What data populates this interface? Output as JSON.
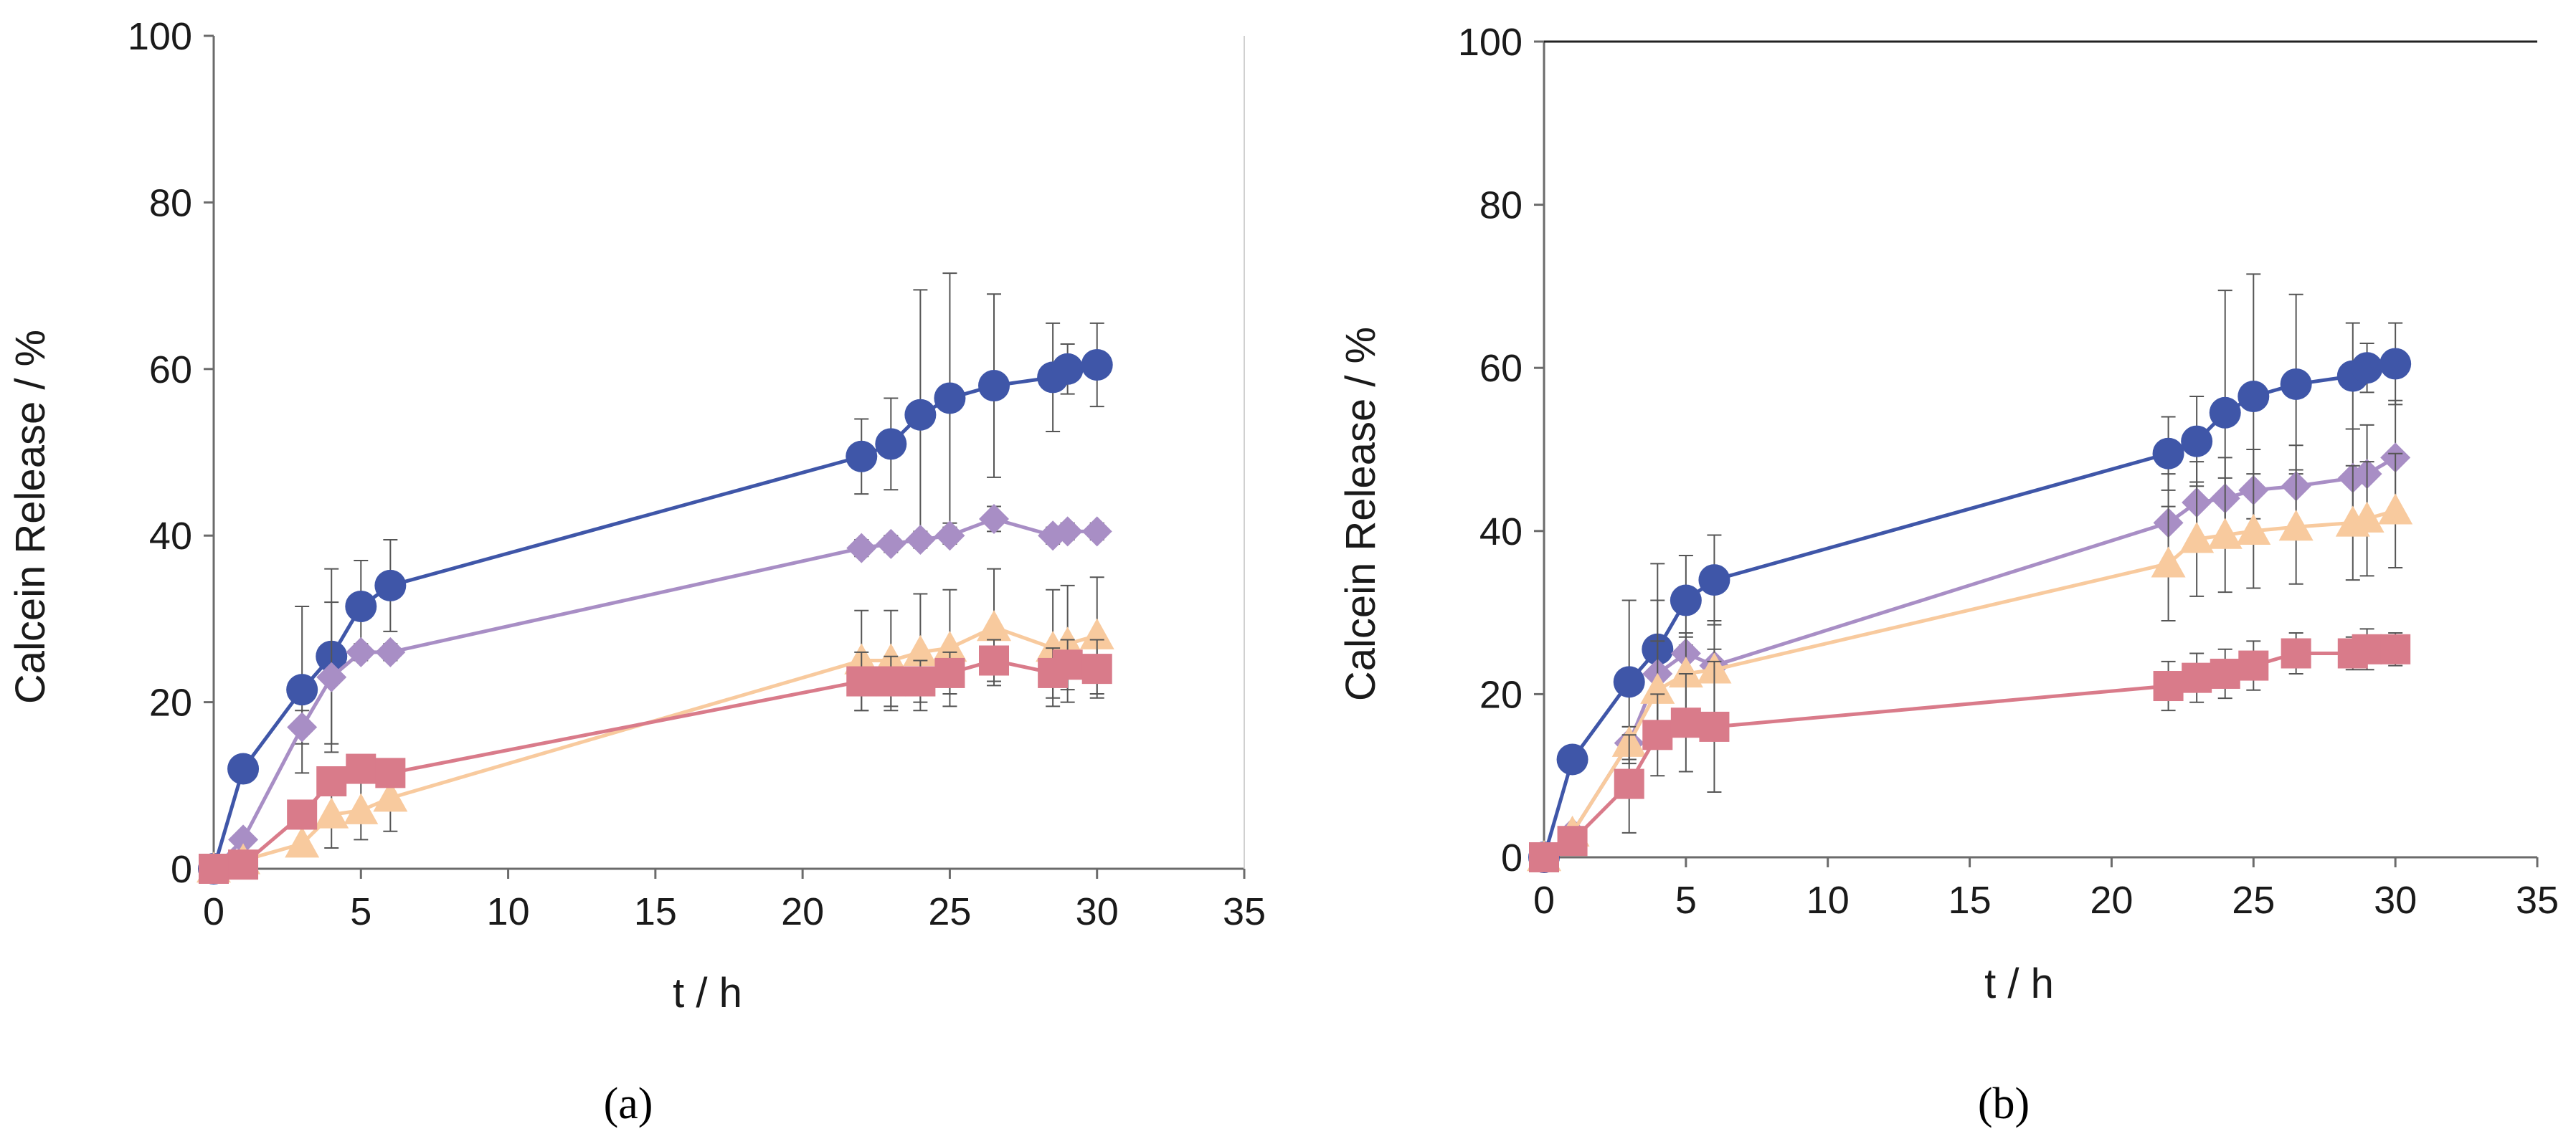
{
  "chart_data": [
    {
      "type": "scatter",
      "panel_label": "(a)",
      "xlabel": "t / h",
      "ylabel": "Calcein Release / %",
      "xlim": [
        0,
        35
      ],
      "ylim": [
        0,
        100
      ],
      "xticks": [
        "0",
        "5",
        "10",
        "15",
        "20",
        "25",
        "30",
        "35"
      ],
      "yticks": [
        "0",
        "20",
        "40",
        "60",
        "80",
        "100"
      ],
      "grid": false,
      "series": [
        {
          "marker": "circle",
          "color": "#3f56a8",
          "x": [
            0,
            1,
            3,
            4,
            5,
            6,
            22,
            23,
            24,
            25,
            26.5,
            28.5,
            29,
            30
          ],
          "y": [
            0,
            12,
            21.5,
            25.5,
            31.5,
            34,
            49.5,
            51,
            54.5,
            56.5,
            58,
            59,
            60,
            60.5
          ],
          "err": [
            0,
            0,
            10,
            10.5,
            5.5,
            5.5,
            4.5,
            5.5,
            15,
            15,
            11,
            6.5,
            3,
            5
          ]
        },
        {
          "marker": "diamond",
          "color": "#a88ec5",
          "x": [
            0,
            1,
            3,
            4,
            5,
            6,
            22,
            23,
            24,
            25,
            26.5,
            28.5,
            29,
            30
          ],
          "y": [
            0,
            3.5,
            17,
            23,
            26,
            26,
            38.5,
            39,
            39.5,
            40,
            42,
            40,
            40.5,
            40.5
          ],
          "err": [
            0,
            0,
            2,
            9,
            1,
            1,
            1,
            1,
            1,
            1,
            1.5,
            1,
            1,
            1
          ]
        },
        {
          "marker": "triangle",
          "color": "#f8ca9e",
          "x": [
            0,
            1,
            3,
            4,
            5,
            6,
            22,
            23,
            24,
            25,
            26.5,
            28.5,
            29,
            30
          ],
          "y": [
            0,
            1,
            3,
            6.5,
            7,
            8.5,
            25,
            25,
            26,
            26.5,
            29,
            26.5,
            27,
            28
          ],
          "err": [
            0,
            0,
            0,
            4,
            3.5,
            4,
            6,
            6,
            7,
            7,
            7,
            7,
            7,
            7
          ]
        },
        {
          "marker": "square",
          "color": "#d97b8a",
          "x": [
            0,
            1,
            3,
            4,
            5,
            6,
            22,
            23,
            24,
            25,
            26.5,
            28.5,
            29,
            30
          ],
          "y": [
            0,
            0.5,
            6.5,
            10.5,
            12,
            11.5,
            22.5,
            22.5,
            22.5,
            23.5,
            25,
            23.5,
            24.5,
            24
          ],
          "err": [
            0,
            0,
            0,
            0,
            0,
            0,
            3.5,
            3,
            2.5,
            2.5,
            2.5,
            3,
            3,
            3.5
          ]
        }
      ]
    },
    {
      "type": "scatter",
      "panel_label": "(b)",
      "xlabel": "t / h",
      "ylabel": "Calcein Release / %",
      "xlim": [
        0,
        35
      ],
      "ylim": [
        0,
        100
      ],
      "xticks": [
        "0",
        "5",
        "10",
        "15",
        "20",
        "25",
        "30",
        "35"
      ],
      "yticks": [
        "0",
        "20",
        "40",
        "60",
        "80",
        "100"
      ],
      "grid": false,
      "series": [
        {
          "marker": "circle",
          "color": "#3f56a8",
          "x": [
            0,
            1,
            3,
            4,
            5,
            6,
            22,
            23,
            24,
            25,
            26.5,
            28.5,
            29,
            30
          ],
          "y": [
            0,
            12,
            21.5,
            25.5,
            31.5,
            34,
            49.5,
            51,
            54.5,
            56.5,
            58,
            59,
            60,
            60.5
          ],
          "err": [
            0,
            0,
            10,
            10.5,
            5.5,
            5.5,
            4.5,
            5.5,
            15,
            15,
            11,
            6.5,
            3,
            5
          ]
        },
        {
          "marker": "diamond",
          "color": "#a88ec5",
          "x": [
            0,
            1,
            3,
            4,
            5,
            6,
            22,
            23,
            24,
            25,
            26.5,
            28.5,
            29,
            30
          ],
          "y": [
            0,
            3,
            14,
            22.5,
            25,
            23.5,
            41,
            43.5,
            44,
            45,
            45.5,
            46.5,
            47,
            49
          ],
          "err": [
            0,
            0,
            2,
            9,
            2,
            2,
            6,
            5,
            5,
            5,
            5,
            6,
            6,
            7
          ]
        },
        {
          "marker": "triangle",
          "color": "#f8ca9e",
          "x": [
            0,
            1,
            3,
            4,
            5,
            6,
            22,
            23,
            24,
            25,
            26.5,
            28.5,
            29,
            30
          ],
          "y": [
            0,
            3,
            14,
            20.5,
            22.5,
            23,
            36,
            39,
            39.5,
            40,
            40.5,
            41,
            41.5,
            42.5
          ],
          "err": [
            0,
            0,
            2,
            6,
            5,
            6,
            7,
            7,
            7,
            7,
            7,
            7,
            7,
            7
          ]
        },
        {
          "marker": "square",
          "color": "#d97b8a",
          "x": [
            0,
            1,
            3,
            4,
            5,
            6,
            22,
            23,
            24,
            25,
            26.5,
            28.5,
            29,
            30
          ],
          "y": [
            0,
            2,
            9,
            15,
            16.5,
            16,
            21,
            22,
            22.5,
            23.5,
            25,
            25,
            25.5,
            25.5
          ],
          "err": [
            0,
            0,
            6,
            5,
            6,
            8,
            3,
            3,
            3,
            3,
            2.5,
            2,
            2.5,
            2
          ]
        }
      ]
    }
  ]
}
